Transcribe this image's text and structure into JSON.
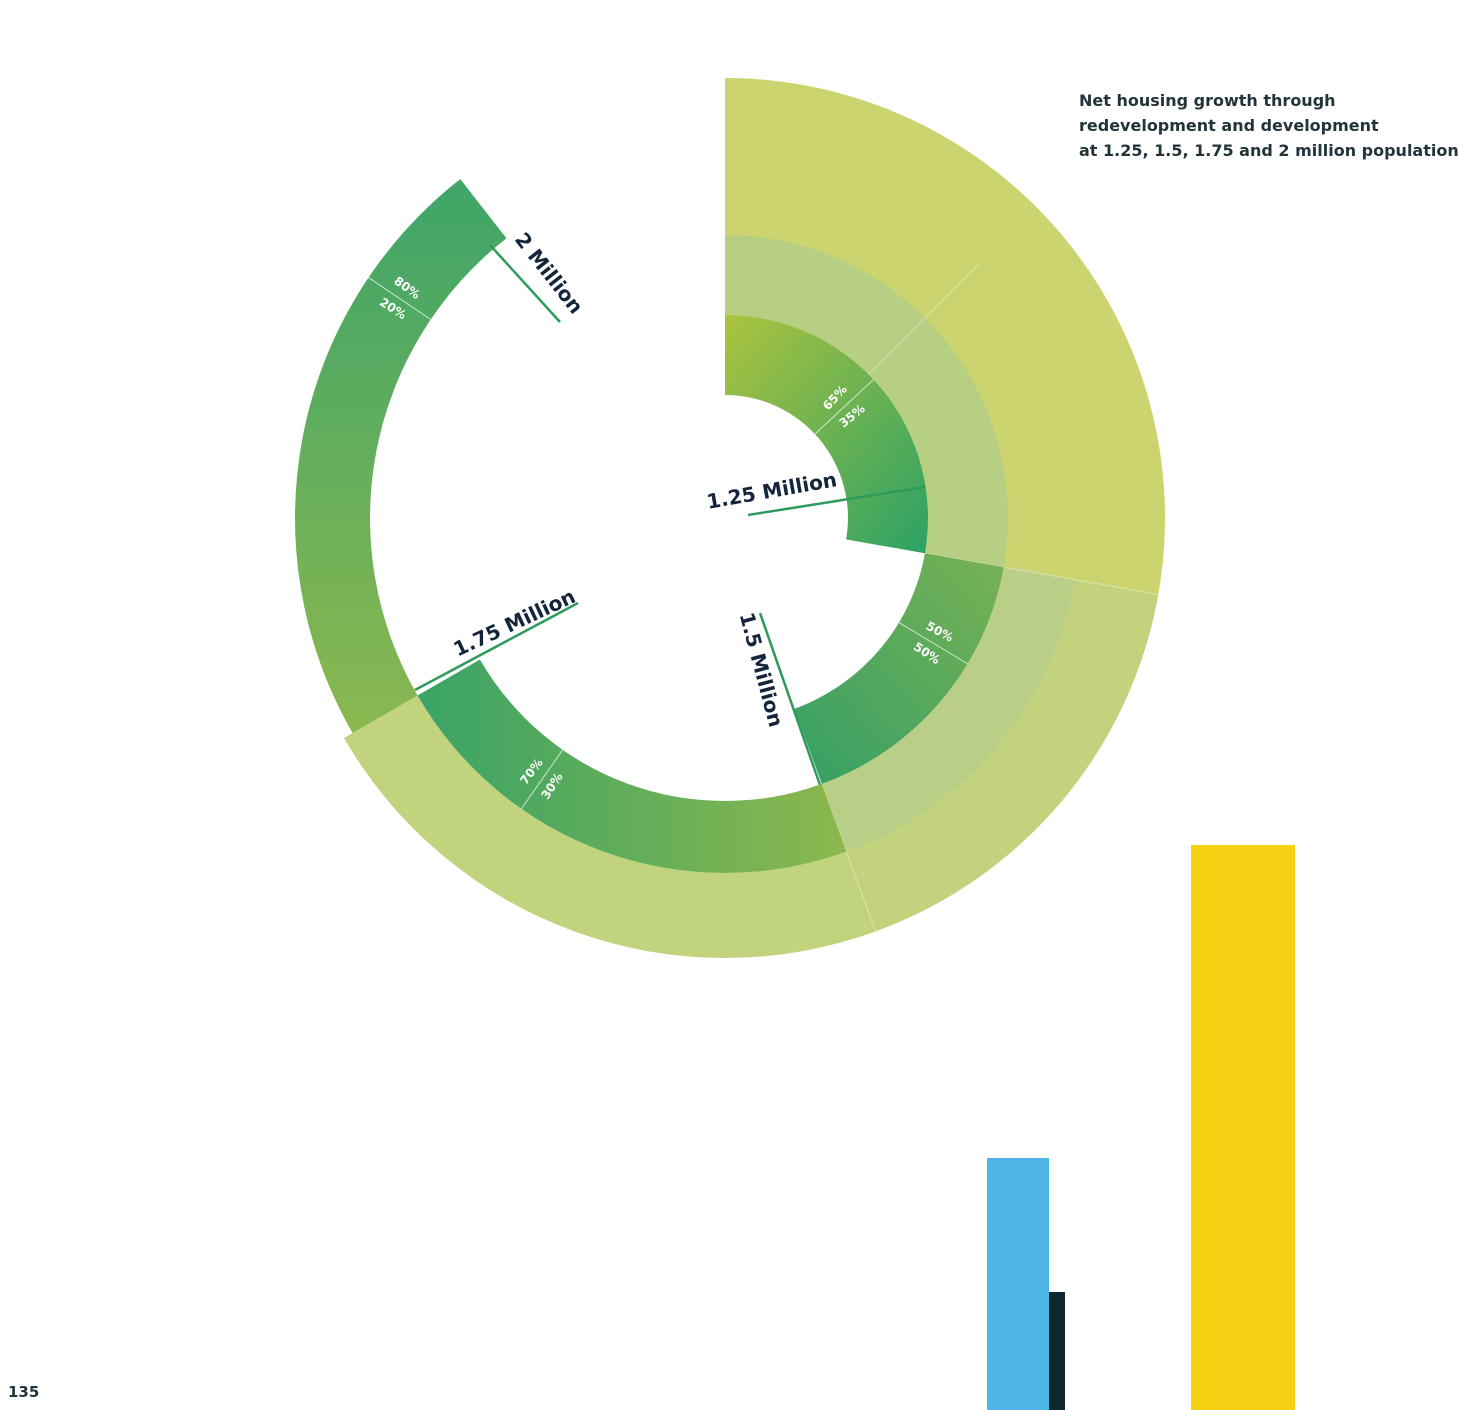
{
  "title": {
    "lines": [
      "Net housing growth through",
      "redevelopment and development",
      "at 1.25, 1.5, 1.75 and 2 million population"
    ]
  },
  "page_number": "135",
  "rings": [
    {
      "label": "1.25 Million",
      "shares": [
        "65%",
        "35%"
      ]
    },
    {
      "label": "1.5 Million",
      "shares": [
        "50%",
        "50%"
      ]
    },
    {
      "label": "1.75 Million",
      "shares": [
        "30%",
        "70%"
      ]
    },
    {
      "label": "2 Million",
      "shares": [
        "20%",
        "80%"
      ]
    }
  ]
}
